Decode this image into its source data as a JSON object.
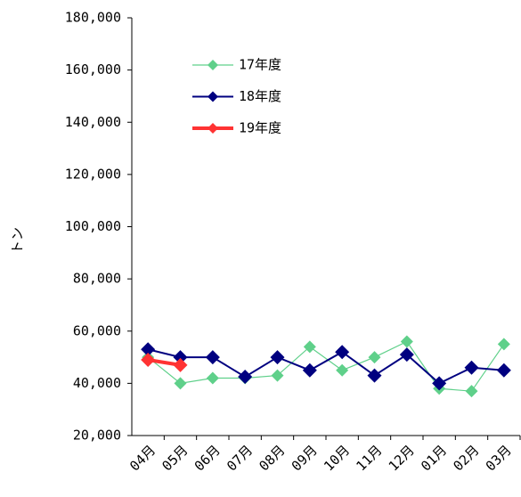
{
  "chart_data": {
    "type": "line",
    "ylabel": "トン",
    "categories": [
      "04月",
      "05月",
      "06月",
      "07月",
      "08月",
      "09月",
      "10月",
      "11月",
      "12月",
      "01月",
      "02月",
      "03月"
    ],
    "series": [
      {
        "name": "17年度",
        "color": "#5fd08a",
        "values": [
          50000,
          40000,
          42000,
          42000,
          43000,
          54000,
          45000,
          50000,
          56000,
          38000,
          37000,
          55000
        ]
      },
      {
        "name": "18年度",
        "color": "#000080",
        "values": [
          53000,
          50000,
          50000,
          42500,
          50000,
          45000,
          52000,
          43000,
          51000,
          40000,
          46000,
          45000
        ]
      },
      {
        "name": "19年度",
        "color": "#ff3333",
        "values": [
          49000,
          47000,
          null,
          null,
          null,
          null,
          null,
          null,
          null,
          null,
          null,
          null
        ]
      }
    ],
    "ylim": [
      20000,
      180000
    ],
    "yticks": [
      {
        "value": 20000,
        "label": "20,000"
      },
      {
        "value": 40000,
        "label": "40,000"
      },
      {
        "value": 60000,
        "label": "60,000"
      },
      {
        "value": 80000,
        "label": "80,000"
      },
      {
        "value": 100000,
        "label": "100,000"
      },
      {
        "value": 120000,
        "label": "120,000"
      },
      {
        "value": 140000,
        "label": "140,000"
      },
      {
        "value": 160000,
        "label": "160,000"
      },
      {
        "value": 180000,
        "label": "180,000"
      }
    ]
  }
}
